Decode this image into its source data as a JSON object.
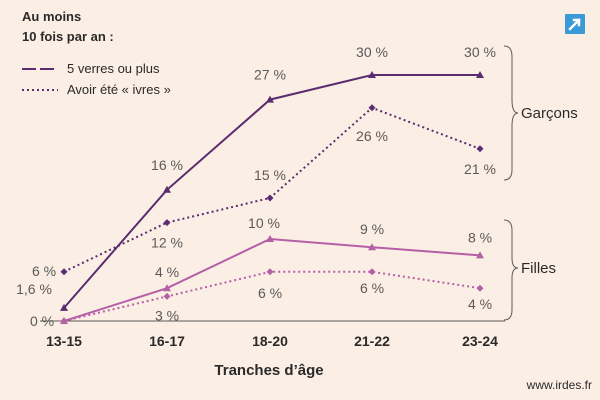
{
  "chart_data": {
    "type": "line",
    "categories": [
      "13-15",
      "16-17",
      "18-20",
      "21-22",
      "23-24"
    ],
    "xlabel": "Tranches d’âge",
    "legend": {
      "title_line1": "Au moins",
      "title_line2": "10 fois par an :",
      "entries": [
        "5 verres ou plus",
        "Avoir été « ivres »"
      ]
    },
    "groups": [
      "Garçons",
      "Filles"
    ],
    "ylim": [
      0,
      30
    ],
    "series": [
      {
        "key": "g5",
        "group": "Garçons",
        "legend": "5 verres ou plus",
        "style": "solid",
        "color": "#5b2c6f",
        "marker": "triangle",
        "values": [
          1.6,
          16,
          27,
          30,
          30
        ],
        "labels": [
          "1,6 %",
          "16 %",
          "27 %",
          "30 %",
          "30 %"
        ]
      },
      {
        "key": "gi",
        "group": "Garçons",
        "legend": "Avoir été « ivres »",
        "style": "dotted",
        "color": "#5b2c6f",
        "marker": "diamond",
        "values": [
          6,
          12,
          15,
          26,
          21
        ],
        "labels": [
          "6 %",
          "12 %",
          "15 %",
          "26 %",
          "21 %"
        ]
      },
      {
        "key": "f5",
        "group": "Filles",
        "legend": "5 verres ou plus",
        "style": "solid",
        "color": "#b560a6",
        "marker": "triangle",
        "values": [
          0,
          4,
          10,
          9,
          8
        ],
        "labels": [
          "0 %",
          "4 %",
          "10 %",
          "9 %",
          "8 %"
        ]
      },
      {
        "key": "fi",
        "group": "Filles",
        "legend": "Avoir été « ivres »",
        "style": "dotted",
        "color": "#b560a6",
        "marker": "diamond",
        "values": [
          0,
          3,
          6,
          6,
          4
        ],
        "labels": [
          "",
          "3 %",
          "6 %",
          "6 %",
          "4 %"
        ]
      }
    ],
    "grid": false
  },
  "source": "www.irdes.fr",
  "colors": {
    "background": "#fbeee4",
    "accent": "#3a9ad9"
  },
  "icons": {
    "corner": "external-link-arrow-icon"
  }
}
